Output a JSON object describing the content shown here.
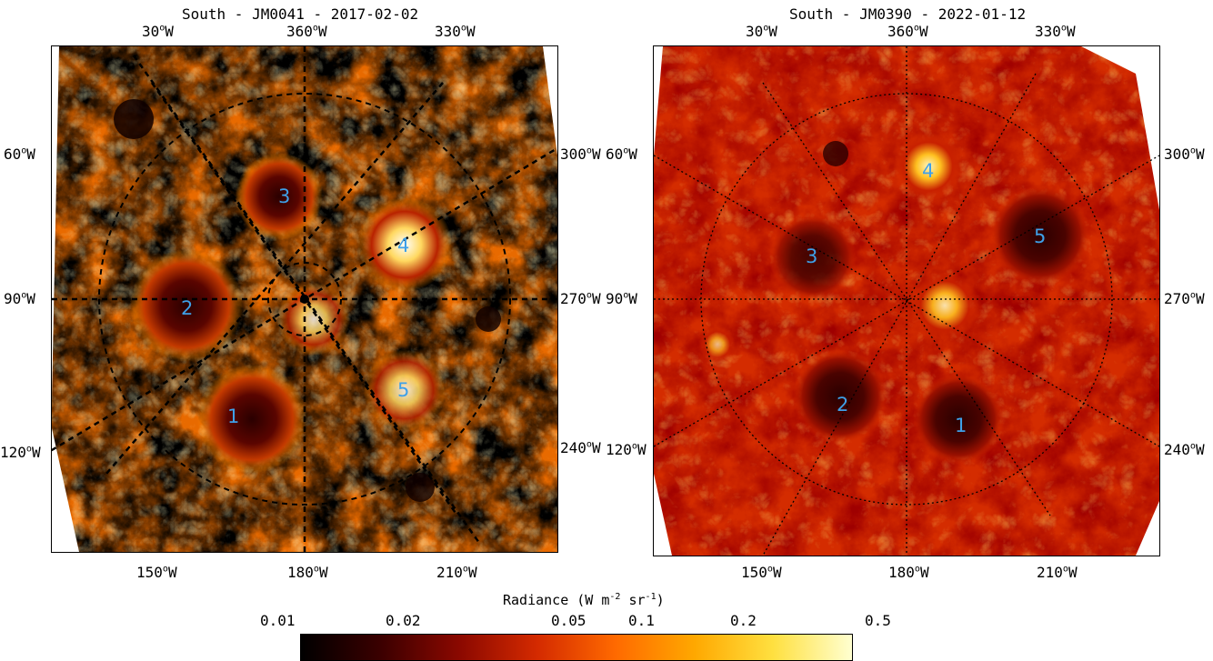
{
  "panels": [
    {
      "title": "South - JM0041 - 2017-02-02",
      "top_labels": [
        "30",
        "360",
        "330"
      ],
      "left_labels": [
        "60",
        "90",
        "120"
      ],
      "right_labels": [
        "300",
        "270",
        "240"
      ],
      "bottom_labels": [
        "150",
        "180",
        "210"
      ],
      "vortices": [
        "1",
        "2",
        "3",
        "4",
        "5"
      ]
    },
    {
      "title": "South - JM0390 - 2022-01-12",
      "top_labels": [
        "30",
        "360",
        "330"
      ],
      "left_labels": [
        "60",
        "90",
        "120"
      ],
      "right_labels": [
        "300",
        "270",
        "240"
      ],
      "bottom_labels": [
        "150",
        "180",
        "210"
      ],
      "vortices": [
        "1",
        "2",
        "3",
        "4",
        "5"
      ]
    }
  ],
  "units": {
    "degree": "o",
    "west": "W"
  },
  "colorbar": {
    "title_text": "Radiance (W m",
    "title_exp1": "-2",
    "title_mid": " sr",
    "title_exp2": "-1",
    "title_end": ")",
    "ticks": [
      "0.01",
      "0.02",
      "0.05",
      "0.1",
      "0.2",
      "0.5"
    ],
    "colormap": [
      "#000000",
      "#3a0000",
      "#8a0800",
      "#d42a00",
      "#ff6a00",
      "#ffa800",
      "#ffe040",
      "#ffffd0"
    ]
  }
}
